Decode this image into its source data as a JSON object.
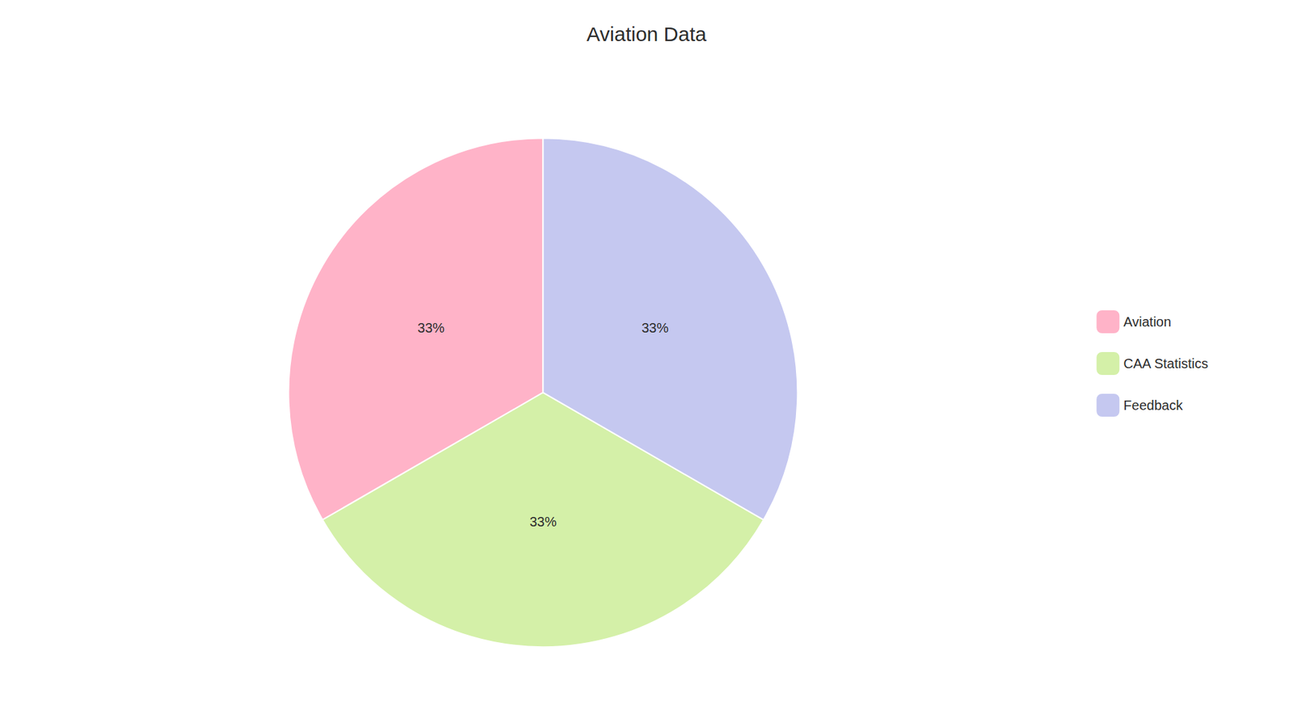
{
  "chart_data": {
    "type": "pie",
    "title": "Aviation Data",
    "categories": [
      "Aviation",
      "CAA Statistics",
      "Feedback"
    ],
    "values": [
      33,
      33,
      33
    ],
    "value_labels": [
      "33%",
      "33%",
      "33%"
    ],
    "colors": [
      "#FFB3C8",
      "#D4F0A8",
      "#C5C8F0"
    ],
    "data_labels": true,
    "legend": "right"
  }
}
